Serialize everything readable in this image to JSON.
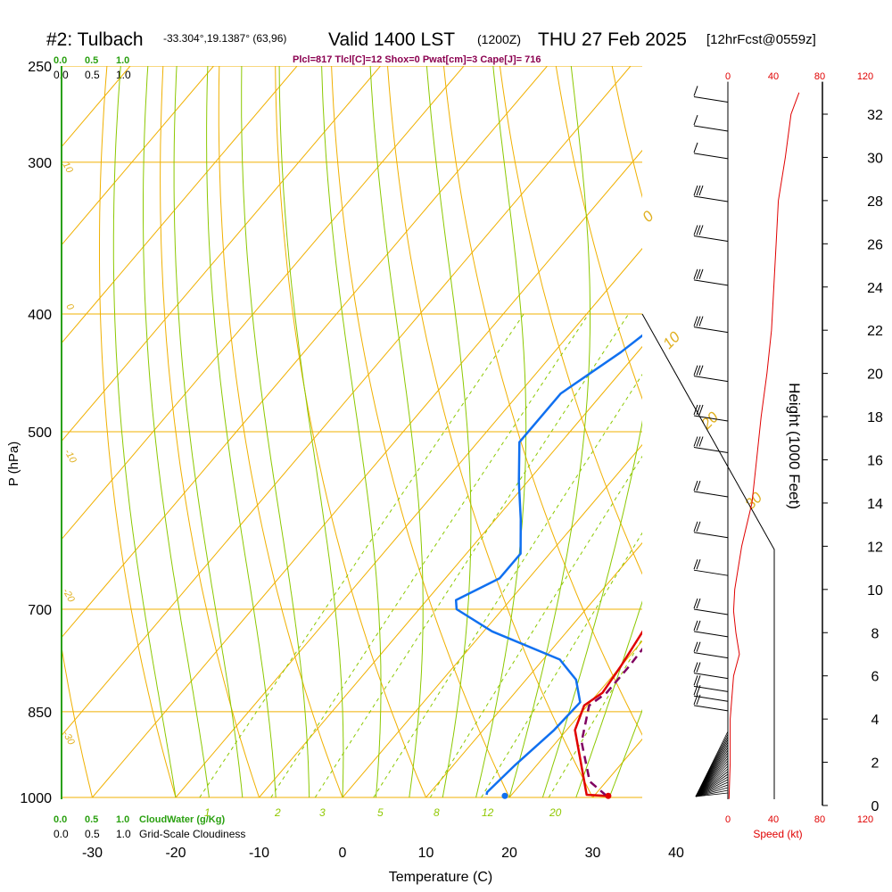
{
  "header": {
    "station": "#2: Tulbach",
    "coords": "-33.304°,19.1387° (63,96)",
    "valid": "Valid 1400 LST",
    "zulu": "(1200Z)",
    "date": "THU 27 Feb 2025",
    "forecast": "[12hrFcst@0559z]"
  },
  "indices": "Plcl=817 Tlcl[C]=12 Shox=0 Pwat[cm]=3 Cape[J]= 716",
  "cloud_scale": {
    "top_green": [
      "0.0",
      "0.5",
      "1.0"
    ],
    "top_black": [
      "0.0",
      "0.5",
      "1.0"
    ],
    "bottom_green": [
      "0.0",
      "0.5",
      "1.0"
    ],
    "bottom_black": [
      "0.0",
      "0.5",
      "1.0"
    ],
    "cloudwater_label": "CloudWater (g/Kg)",
    "cloudiness_label": "Grid-Scale Cloudiness"
  },
  "axes": {
    "ylabel": "P (hPa)",
    "xlabel": "Temperature (C)",
    "height_label": "Height (1000 Feet)",
    "speed_label": "Speed (kt)"
  },
  "speed_ticks": [
    "0",
    "40",
    "80",
    "120"
  ],
  "adiabat_labels": [
    "10",
    "0",
    "-10",
    "-20",
    "-30",
    "0",
    "10",
    "20",
    "30"
  ],
  "mixing_labels": [
    "1",
    "2",
    "3",
    "5",
    "8",
    "12",
    "20"
  ],
  "colors": {
    "temperature": "#e00000",
    "dewpoint": "#1070f0",
    "parcel": "#800060",
    "isobar": "#f0b000",
    "isotherm": "#f0b000",
    "dry_adiabat": "#f0b000",
    "moist_adiabat": "#8cc800",
    "mixing_ratio": "#8cc800",
    "cloud": "#2aa010"
  },
  "chart_data": {
    "type": "line",
    "title": "#2: Tulbach Valid 1400 LST THU 27 Feb 2025",
    "xlabel": "Temperature (C)",
    "ylabel": "P (hPa)",
    "xlim": [
      -35,
      45
    ],
    "ylim": [
      1000,
      250
    ],
    "x_ticks": [
      -30,
      -20,
      -10,
      0,
      10,
      20,
      30,
      40
    ],
    "y_ticks": [
      250,
      300,
      400,
      500,
      700,
      850,
      1000
    ],
    "height_ticks_kft": [
      0,
      2,
      4,
      6,
      8,
      10,
      12,
      14,
      16,
      18,
      20,
      22,
      24,
      26,
      28,
      30,
      32
    ],
    "grid": true,
    "series": [
      {
        "name": "temperature",
        "color": "#e00000",
        "points": [
          [
            31.5,
            997
          ],
          [
            29.0,
            995
          ],
          [
            21,
            880
          ],
          [
            19.6,
            840
          ],
          [
            20.5,
            820
          ],
          [
            20,
            780
          ],
          [
            18.5,
            700
          ],
          [
            16.5,
            630
          ],
          [
            14.5,
            560
          ],
          [
            12,
            500
          ],
          [
            9,
            440
          ],
          [
            6,
            400
          ],
          [
            3,
            360
          ],
          [
            0.5,
            330
          ],
          [
            -1.5,
            300
          ],
          [
            -2,
            280
          ],
          [
            -2,
            260
          ]
        ]
      },
      {
        "name": "dewpoint",
        "color": "#1070f0",
        "points": [
          [
            17,
            995
          ],
          [
            16.8,
            990
          ],
          [
            17.4,
            940
          ],
          [
            18.5,
            880
          ],
          [
            18.8,
            835
          ],
          [
            16,
            800
          ],
          [
            12,
            770
          ],
          [
            1,
            730
          ],
          [
            -5.5,
            700
          ],
          [
            -6.5,
            688
          ],
          [
            -3.5,
            660
          ],
          [
            -3.5,
            630
          ],
          [
            -7,
            590
          ],
          [
            -11,
            550
          ],
          [
            -15,
            510
          ],
          [
            -15,
            465
          ],
          [
            -12,
            430
          ],
          [
            -10,
            400
          ],
          [
            -7,
            370
          ],
          [
            -5,
            350
          ],
          [
            -5,
            330
          ],
          [
            -6,
            310
          ],
          [
            -7,
            300
          ],
          [
            -11,
            275
          ]
        ]
      },
      {
        "name": "parcel",
        "color": "#800060",
        "points": [
          [
            31.5,
            997
          ],
          [
            28,
            970
          ],
          [
            23,
            900
          ],
          [
            20.2,
            840
          ],
          [
            21,
            820
          ],
          [
            21,
            780
          ],
          [
            20.5,
            700
          ],
          [
            19.5,
            620
          ],
          [
            18,
            560
          ],
          [
            16.5,
            500
          ],
          [
            13.5,
            440
          ],
          [
            10.8,
            400
          ],
          [
            8,
            370
          ],
          [
            5,
            340
          ],
          [
            2.5,
            310
          ],
          [
            0.5,
            290
          ]
        ]
      }
    ],
    "surface_points": [
      {
        "name": "surface-temp",
        "temp": 31.7,
        "pressure": 997,
        "color": "#e00000"
      },
      {
        "name": "surface-dewpoint",
        "temp": 19.3,
        "pressure": 997,
        "color": "#1070f0"
      }
    ],
    "wind_speed_profile": [
      {
        "height_kft": 0.3,
        "speed_kt": 1
      },
      {
        "height_kft": 2,
        "speed_kt": 2
      },
      {
        "height_kft": 4,
        "speed_kt": 2
      },
      {
        "height_kft": 6,
        "speed_kt": 5
      },
      {
        "height_kft": 7,
        "speed_kt": 10
      },
      {
        "height_kft": 8,
        "speed_kt": 7
      },
      {
        "height_kft": 9,
        "speed_kt": 5
      },
      {
        "height_kft": 10,
        "speed_kt": 6
      },
      {
        "height_kft": 12,
        "speed_kt": 12
      },
      {
        "height_kft": 14,
        "speed_kt": 21
      },
      {
        "height_kft": 16,
        "speed_kt": 25
      },
      {
        "height_kft": 18,
        "speed_kt": 29
      },
      {
        "height_kft": 20,
        "speed_kt": 34
      },
      {
        "height_kft": 22,
        "speed_kt": 38
      },
      {
        "height_kft": 24,
        "speed_kt": 40
      },
      {
        "height_kft": 26,
        "speed_kt": 42
      },
      {
        "height_kft": 28,
        "speed_kt": 44
      },
      {
        "height_kft": 30,
        "speed_kt": 50
      },
      {
        "height_kft": 32,
        "speed_kt": 55
      },
      {
        "height_kft": 33,
        "speed_kt": 62
      }
    ],
    "wind_barb_pressures": [
      265,
      280,
      295,
      320,
      345,
      375,
      410,
      450,
      485,
      515,
      560,
      605,
      650,
      700,
      730,
      760,
      790,
      810,
      825,
      840
    ]
  }
}
